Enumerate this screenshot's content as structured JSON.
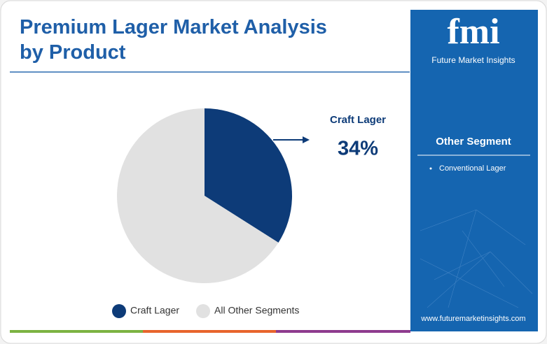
{
  "chart_data": {
    "type": "pie",
    "title": "Premium Lager Market Analysis by Product",
    "categories": [
      "Craft Lager",
      "All Other Segments"
    ],
    "values": [
      34,
      66
    ],
    "value_labels": [
      "34%",
      null
    ],
    "colors": [
      "#0d3b78",
      "#e1e1e1"
    ]
  },
  "sidebar": {
    "logo_mark": "fmi",
    "logo_name": "Future Market Insights",
    "heading": "Other Segment",
    "items": [
      "Conventional Lager"
    ],
    "url": "www.futuremarketinsights.com"
  }
}
